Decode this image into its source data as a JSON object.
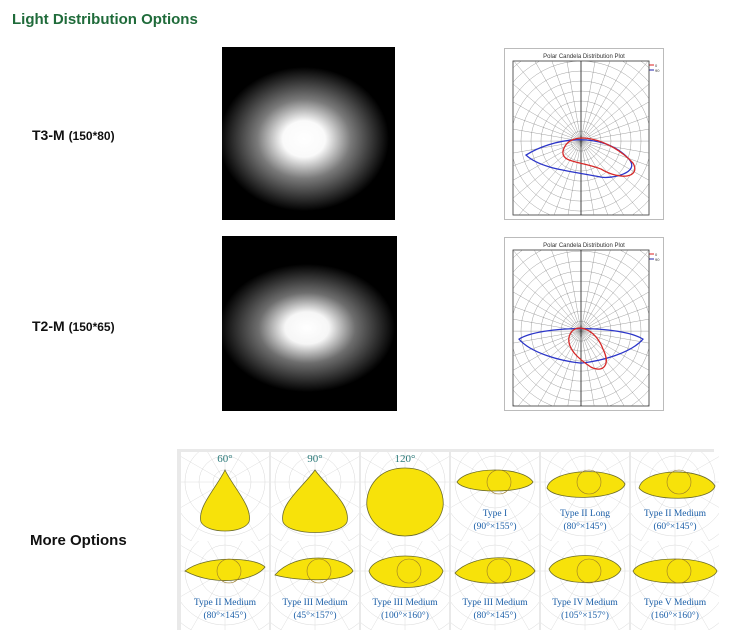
{
  "heading": "Light Distribution Options",
  "options": [
    {
      "code": "T3-M",
      "size": "(150*80)"
    },
    {
      "code": "T2-M",
      "size": "(150*65)"
    }
  ],
  "plot_title": "Polar Candela Distribution Plot",
  "legend": [
    "0",
    "90"
  ],
  "more_label": "More Options",
  "more_options": [
    {
      "top": "60°",
      "name": "",
      "dims": ""
    },
    {
      "top": "90°",
      "name": "",
      "dims": ""
    },
    {
      "top": "120°",
      "name": "",
      "dims": ""
    },
    {
      "top": "",
      "name": "Type I",
      "dims": "(90°×155°)"
    },
    {
      "top": "",
      "name": "Type II Long",
      "dims": "(80°×145°)"
    },
    {
      "top": "",
      "name": "Type II Medium",
      "dims": "(60°×145°)"
    },
    {
      "top": "",
      "name": "Type II Medium",
      "dims": "(80°×145°)"
    },
    {
      "top": "",
      "name": "Type III Medium",
      "dims": "(45°×157°)"
    },
    {
      "top": "",
      "name": "Type III Medium",
      "dims": "(100°×160°)"
    },
    {
      "top": "",
      "name": "Type III Medium",
      "dims": "(80°×145°)"
    },
    {
      "top": "",
      "name": "Type IV Medium",
      "dims": "(105°×157°)"
    },
    {
      "top": "",
      "name": "Type V Medium",
      "dims": "(160°×160°)"
    }
  ]
}
